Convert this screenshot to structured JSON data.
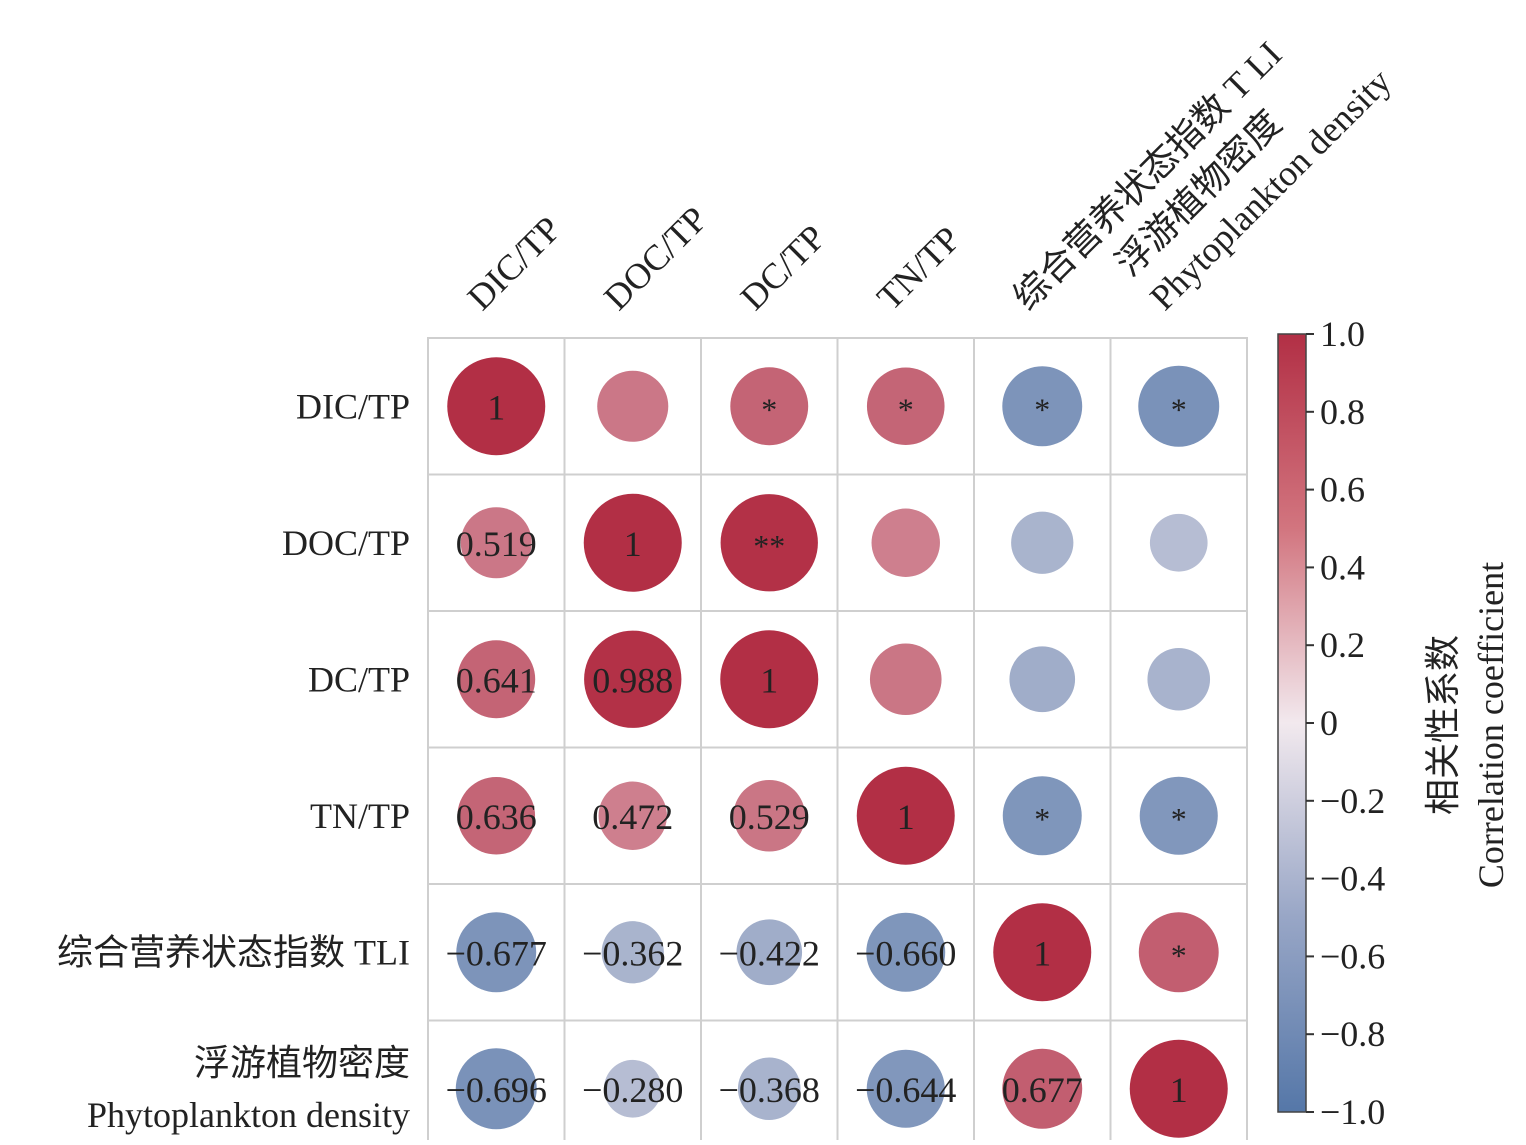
{
  "chart_data": {
    "type": "heatmap",
    "variables": [
      [
        "DIC/TP"
      ],
      [
        "DOC/TP"
      ],
      [
        "DC/TP"
      ],
      [
        "TN/TP"
      ],
      [
        "综合营养状态指数 TLI"
      ],
      [
        "浮游植物密度",
        "Phytoplankton density"
      ]
    ],
    "column_labels": [
      [
        "DIC/TP"
      ],
      [
        "DOC/TP"
      ],
      [
        "DC/TP"
      ],
      [
        "TN/TP"
      ],
      [
        "综合营养状态指数 T LI"
      ],
      [
        "浮游植物密度",
        "Phytoplankton density"
      ]
    ],
    "matrix": [
      [
        1,
        0.519,
        0.641,
        0.636,
        -0.677,
        -0.696
      ],
      [
        0.519,
        1,
        0.988,
        0.472,
        -0.362,
        -0.28
      ],
      [
        0.641,
        0.988,
        1,
        0.529,
        -0.422,
        -0.368
      ],
      [
        0.636,
        0.472,
        0.529,
        1,
        -0.66,
        -0.644
      ],
      [
        -0.677,
        -0.362,
        -0.422,
        -0.66,
        1,
        0.677
      ],
      [
        -0.696,
        -0.28,
        -0.368,
        -0.644,
        0.677,
        1
      ]
    ],
    "lower_labels": [
      [
        null,
        null,
        null,
        null,
        null,
        null
      ],
      [
        "0.519",
        null,
        null,
        null,
        null,
        null
      ],
      [
        "0.641",
        "0.988",
        null,
        null,
        null,
        null
      ],
      [
        "0.636",
        "0.472",
        "0.529",
        null,
        null,
        null
      ],
      [
        "−0.677",
        "−0.362",
        "−0.422",
        "−0.660",
        null,
        null
      ],
      [
        "−0.696",
        "−0.280",
        "−0.368",
        "−0.644",
        "0.677",
        null
      ]
    ],
    "diagonal_label": "1",
    "upper_marks": [
      [
        null,
        "",
        "*",
        "*",
        "*",
        "*"
      ],
      [
        null,
        null,
        "**",
        "",
        "",
        ""
      ],
      [
        null,
        null,
        null,
        "",
        "",
        ""
      ],
      [
        null,
        null,
        null,
        null,
        "*",
        "*"
      ],
      [
        null,
        null,
        null,
        null,
        null,
        "*"
      ],
      [
        null,
        null,
        null,
        null,
        null,
        null
      ]
    ],
    "colorbar": {
      "range": [
        -1.0,
        1.0
      ],
      "ticks": [
        "1.0",
        "0.8",
        "0.6",
        "0.4",
        "0.2",
        "0",
        "−0.2",
        "−0.4",
        "−0.6",
        "−0.8",
        "−1.0"
      ],
      "label": [
        "相关性系数",
        "Correlation coefficient"
      ],
      "colors": {
        "negative": "#5577a8",
        "zero": "#f2e9ee",
        "positive": "#b22f45"
      }
    }
  }
}
